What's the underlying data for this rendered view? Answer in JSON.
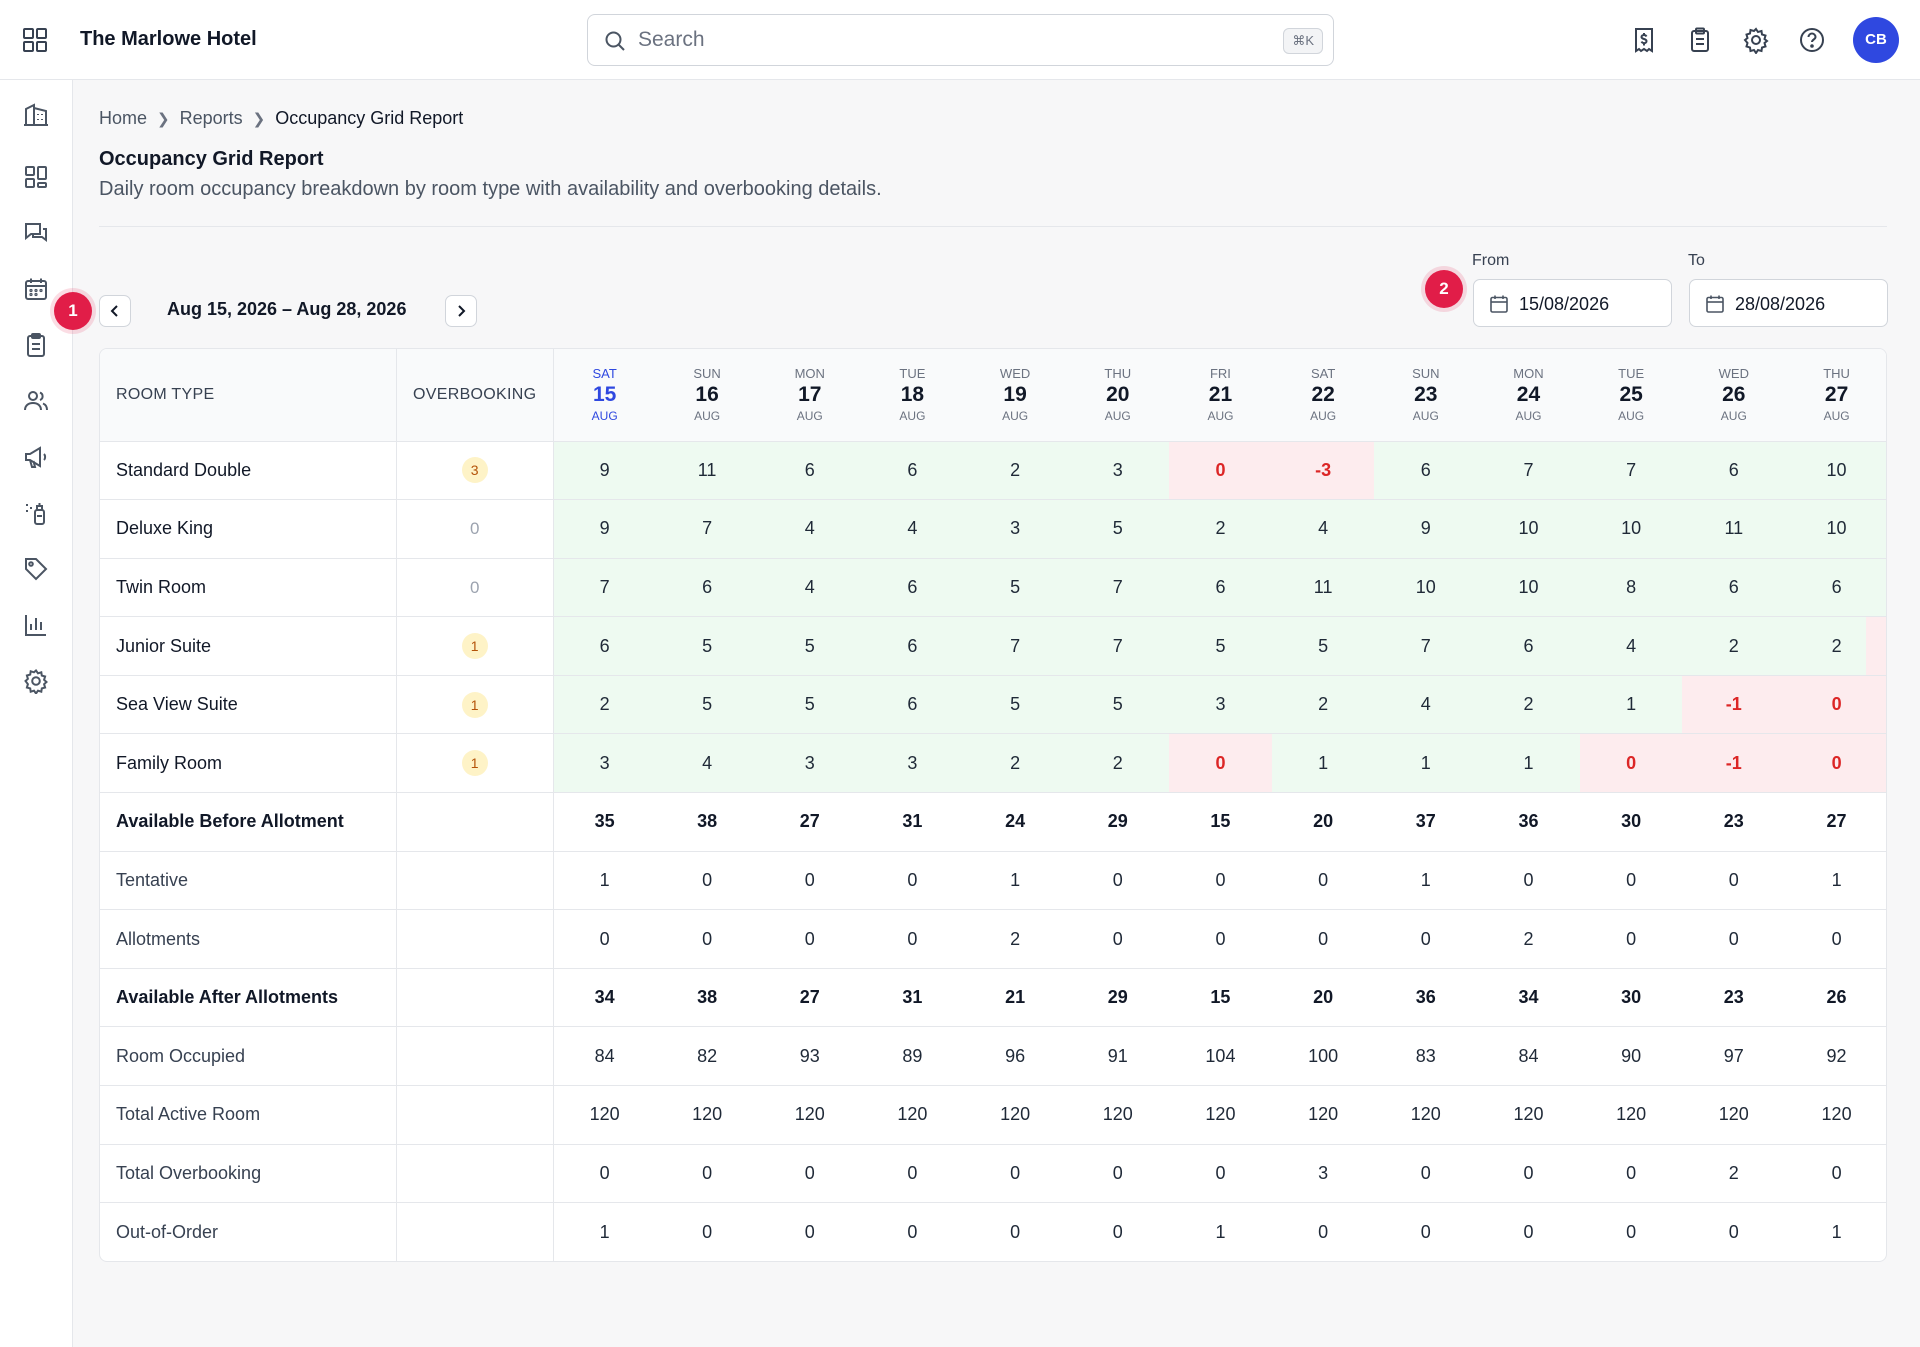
{
  "app": {
    "hotel_name": "The Marlowe Hotel"
  },
  "search": {
    "placeholder": "Search",
    "shortcut": "⌘K"
  },
  "header_icons": [
    "invoice-icon",
    "clipboard-icon",
    "gear-icon",
    "help-icon"
  ],
  "user": {
    "initials": "CB",
    "avatar_color": "#2f48e0"
  },
  "sidebar": {
    "items": [
      "building-icon",
      "dashboard-icon",
      "chat-icon",
      "calendar-icon",
      "clipboard-icon",
      "users-icon",
      "megaphone-icon",
      "cleaning-icon",
      "tag-icon",
      "bar-chart-icon",
      "gear-icon"
    ]
  },
  "breadcrumb": [
    "Home",
    "Reports",
    "Occupancy Grid Report"
  ],
  "page": {
    "title": "Occupancy Grid Report",
    "subtitle": "Daily room occupancy breakdown by room type with availability and overbooking details."
  },
  "annotations": {
    "first": "1",
    "second": "2"
  },
  "range": {
    "label": "Aug 15, 2026 – Aug 28, 2026"
  },
  "filters": {
    "from_label": "From",
    "from_value": "15/08/2026",
    "to_label": "To",
    "to_value": "28/08/2026"
  },
  "grid": {
    "col_room_type": "ROOM TYPE",
    "col_overbooking": "OVERBOOKING",
    "days": [
      {
        "dow": "SAT",
        "day": "15",
        "mon": "AUG",
        "today": true
      },
      {
        "dow": "SUN",
        "day": "16",
        "mon": "AUG"
      },
      {
        "dow": "MON",
        "day": "17",
        "mon": "AUG"
      },
      {
        "dow": "TUE",
        "day": "18",
        "mon": "AUG"
      },
      {
        "dow": "WED",
        "day": "19",
        "mon": "AUG"
      },
      {
        "dow": "THU",
        "day": "20",
        "mon": "AUG"
      },
      {
        "dow": "FRI",
        "day": "21",
        "mon": "AUG"
      },
      {
        "dow": "SAT",
        "day": "22",
        "mon": "AUG"
      },
      {
        "dow": "SUN",
        "day": "23",
        "mon": "AUG"
      },
      {
        "dow": "MON",
        "day": "24",
        "mon": "AUG"
      },
      {
        "dow": "TUE",
        "day": "25",
        "mon": "AUG"
      },
      {
        "dow": "WED",
        "day": "26",
        "mon": "AUG"
      },
      {
        "dow": "THU",
        "day": "27",
        "mon": "AUG"
      }
    ],
    "room_rows": [
      {
        "name": "Standard Double",
        "overbooking": "3",
        "values": [
          "9",
          "11",
          "6",
          "6",
          "2",
          "3",
          "0",
          "-3",
          "6",
          "7",
          "7",
          "6",
          "10"
        ]
      },
      {
        "name": "Deluxe King",
        "overbooking": "0",
        "values": [
          "9",
          "7",
          "4",
          "4",
          "3",
          "5",
          "2",
          "4",
          "9",
          "10",
          "10",
          "11",
          "10"
        ]
      },
      {
        "name": "Twin Room",
        "overbooking": "0",
        "values": [
          "7",
          "6",
          "4",
          "6",
          "5",
          "7",
          "6",
          "11",
          "10",
          "10",
          "8",
          "6",
          "6"
        ]
      },
      {
        "name": "Junior Suite",
        "overbooking": "1",
        "values": [
          "6",
          "5",
          "5",
          "6",
          "7",
          "7",
          "5",
          "5",
          "7",
          "6",
          "4",
          "2",
          "2"
        ]
      },
      {
        "name": "Sea View Suite",
        "overbooking": "1",
        "values": [
          "2",
          "5",
          "5",
          "6",
          "5",
          "5",
          "3",
          "2",
          "4",
          "2",
          "1",
          "-1",
          "0"
        ]
      },
      {
        "name": "Family Room",
        "overbooking": "1",
        "values": [
          "3",
          "4",
          "3",
          "3",
          "2",
          "2",
          "0",
          "1",
          "1",
          "1",
          "0",
          "-1",
          "0"
        ]
      }
    ],
    "summary_rows": [
      {
        "name": "Available Before Allotment",
        "bold": true,
        "values": [
          "35",
          "38",
          "27",
          "31",
          "24",
          "29",
          "15",
          "20",
          "37",
          "36",
          "30",
          "23",
          "27"
        ]
      },
      {
        "name": "Tentative",
        "values": [
          "1",
          "0",
          "0",
          "0",
          "1",
          "0",
          "0",
          "0",
          "1",
          "0",
          "0",
          "0",
          "1"
        ]
      },
      {
        "name": "Allotments",
        "values": [
          "0",
          "0",
          "0",
          "0",
          "2",
          "0",
          "0",
          "0",
          "0",
          "2",
          "0",
          "0",
          "0"
        ]
      },
      {
        "name": "Available After Allotments",
        "bold": true,
        "values": [
          "34",
          "38",
          "27",
          "31",
          "21",
          "29",
          "15",
          "20",
          "36",
          "34",
          "30",
          "23",
          "26"
        ]
      },
      {
        "name": "Room Occupied",
        "values": [
          "84",
          "82",
          "93",
          "89",
          "96",
          "91",
          "104",
          "100",
          "83",
          "84",
          "90",
          "97",
          "92"
        ]
      },
      {
        "name": "Total Active Room",
        "values": [
          "120",
          "120",
          "120",
          "120",
          "120",
          "120",
          "120",
          "120",
          "120",
          "120",
          "120",
          "120",
          "120"
        ]
      },
      {
        "name": "Total Overbooking",
        "values": [
          "0",
          "0",
          "0",
          "0",
          "0",
          "0",
          "0",
          "3",
          "0",
          "0",
          "0",
          "2",
          "0"
        ]
      },
      {
        "name": "Out-of-Order",
        "values": [
          "1",
          "0",
          "0",
          "0",
          "0",
          "0",
          "1",
          "0",
          "0",
          "0",
          "0",
          "0",
          "1"
        ]
      }
    ]
  }
}
